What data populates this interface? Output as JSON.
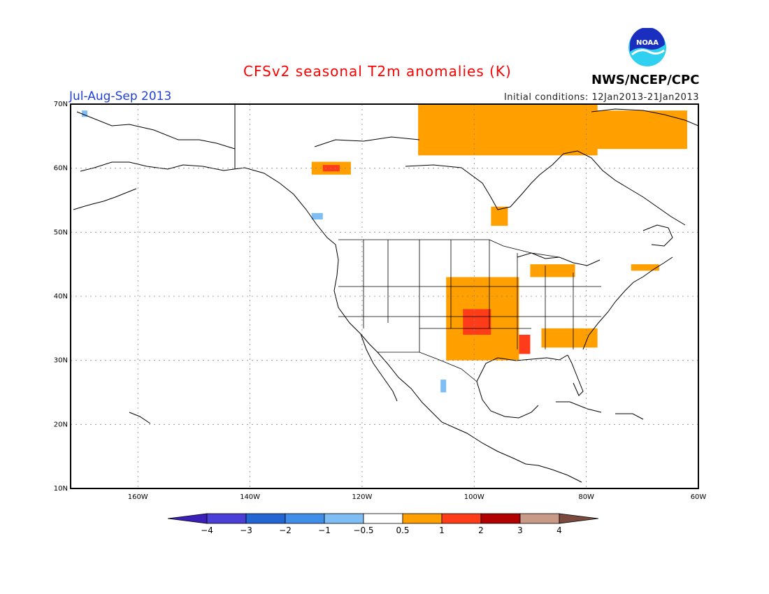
{
  "header": {
    "title": "CFSv2 seasonal T2m anomalies (K)",
    "period": "Jul-Aug-Sep 2013",
    "initial_conditions": "Initial conditions: 12Jan2013-21Jan2013",
    "agency": "NWS/NCEP/CPC",
    "logo_text": "NOAA"
  },
  "map": {
    "projection": "lat-lon",
    "lon_range": [
      -172,
      -60
    ],
    "lat_range": [
      10,
      70
    ],
    "lat_ticks": [
      "10N",
      "20N",
      "30N",
      "40N",
      "50N",
      "60N",
      "70N"
    ],
    "lon_ticks": [
      "160W",
      "140W",
      "120W",
      "100W",
      "80W",
      "60W"
    ],
    "grid": "dotted"
  },
  "colorbar": {
    "labels": [
      "-4",
      "-3",
      "-2",
      "-1",
      "-0.5",
      "0.5",
      "1",
      "2",
      "3",
      "4"
    ],
    "colors": [
      "#3a1fb8",
      "#4a3fd6",
      "#2266d4",
      "#3f8fea",
      "#7fbef5",
      "#ffffff",
      "#ff9f00",
      "#ff3c1a",
      "#b00000",
      "#c89a88",
      "#7a4a3e"
    ]
  },
  "anomaly_regions": [
    {
      "name": "northern canada arctic",
      "level": "0.5-1",
      "lon": [
        -110,
        -78
      ],
      "lat": [
        62,
        70
      ]
    },
    {
      "name": "hudson bay east",
      "level": "0.5-1",
      "lon": [
        -80,
        -62
      ],
      "lat": [
        63,
        69
      ]
    },
    {
      "name": "yukon patch",
      "level": "0.5-1",
      "lon": [
        -129,
        -122
      ],
      "lat": [
        59,
        61
      ]
    },
    {
      "name": "yukon core",
      "level": "1-2",
      "lon": [
        -127,
        -124
      ],
      "lat": [
        59.5,
        60.5
      ]
    },
    {
      "name": "central plains",
      "level": "0.5-1",
      "lon": [
        -105,
        -92
      ],
      "lat": [
        30,
        43
      ]
    },
    {
      "name": "oklahoma kansas core",
      "level": "1-2",
      "lon": [
        -102,
        -97
      ],
      "lat": [
        34,
        38
      ]
    },
    {
      "name": "lower mississippi core",
      "level": "1-2",
      "lon": [
        -92,
        -90
      ],
      "lat": [
        31,
        34
      ]
    },
    {
      "name": "southeast",
      "level": "0.5-1",
      "lon": [
        -88,
        -78
      ],
      "lat": [
        32,
        35
      ]
    },
    {
      "name": "great lakes",
      "level": "0.5-1",
      "lon": [
        -90,
        -82
      ],
      "lat": [
        43,
        45
      ]
    },
    {
      "name": "new england",
      "level": "0.5-1",
      "lon": [
        -72,
        -67
      ],
      "lat": [
        44,
        45
      ]
    },
    {
      "name": "ontario",
      "level": "0.5-1",
      "lon": [
        -97,
        -94
      ],
      "lat": [
        51,
        54
      ]
    },
    {
      "name": "alaska tip",
      "level": "-1 to -0.5",
      "lon": [
        -170,
        -169
      ],
      "lat": [
        68,
        69
      ]
    },
    {
      "name": "bc coast",
      "level": "-1 to -0.5",
      "lon": [
        -129,
        -127
      ],
      "lat": [
        52,
        53
      ]
    },
    {
      "name": "mexico",
      "level": "-1 to -0.5",
      "lon": [
        -106,
        -105
      ],
      "lat": [
        25,
        27
      ]
    }
  ]
}
